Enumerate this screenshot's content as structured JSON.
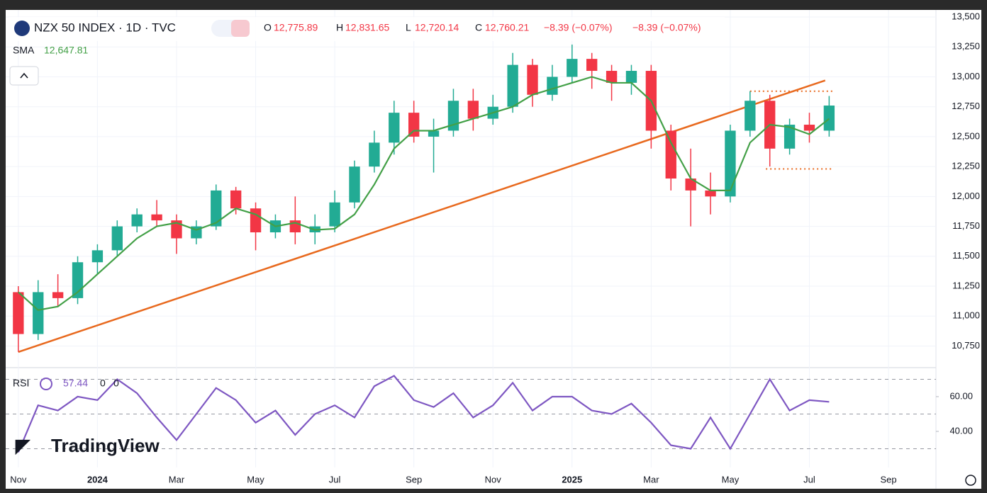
{
  "chart_data": {
    "type": "candlestick",
    "symbol": "NZX 50 INDEX · 1D · TVC",
    "ohlc": {
      "o_label": "O",
      "o": "12,775.89",
      "h_label": "H",
      "h": "12,831.65",
      "l_label": "L",
      "l": "12,720.14",
      "c_label": "C",
      "c": "12,760.21",
      "change": "−8.39 (−0.07%)",
      "change2": "−8.39 (−0.07%)"
    },
    "sma_label": "SMA",
    "sma_value": "12,647.81",
    "rsi_label": "RSI",
    "rsi_value": "57.44",
    "rsi_param1": "0",
    "rsi_param2": "0",
    "brand": "TradingView",
    "x": [
      0,
      0.5,
      1,
      1.5,
      2,
      2.5,
      3,
      3.5,
      4,
      4.5,
      5,
      5.5,
      6,
      6.5,
      7,
      7.5,
      8,
      8.5,
      9,
      9.5,
      10,
      10.5,
      11,
      11.5,
      12,
      12.5,
      13,
      13.5,
      14,
      14.5,
      15,
      15.5,
      16,
      16.5,
      17,
      17.5,
      18,
      18.5,
      19,
      19.5,
      20,
      20.5
    ],
    "open": [
      11200,
      10850,
      11200,
      11150,
      11450,
      11550,
      11750,
      11850,
      11800,
      11650,
      11750,
      12050,
      11900,
      11700,
      11800,
      11700,
      11750,
      11950,
      12250,
      12450,
      12700,
      12500,
      12550,
      12800,
      12650,
      12750,
      13100,
      12850,
      13000,
      13150,
      13050,
      12950,
      13050,
      12550,
      12150,
      12050,
      12000,
      12550,
      12800,
      12400,
      12600,
      12550
    ],
    "high": [
      11250,
      11300,
      11350,
      11500,
      11600,
      11800,
      11900,
      11970,
      11850,
      11800,
      12100,
      12080,
      11950,
      11850,
      12000,
      11850,
      12050,
      12300,
      12550,
      12800,
      12800,
      12650,
      12900,
      12900,
      12850,
      13200,
      13150,
      13100,
      13270,
      13200,
      13100,
      13100,
      13100,
      12600,
      12400,
      12200,
      12600,
      12880,
      12850,
      12650,
      12700,
      12840
    ],
    "low": [
      10700,
      10800,
      11080,
      11100,
      11350,
      11500,
      11700,
      11750,
      11520,
      11600,
      11720,
      11850,
      11550,
      11650,
      11600,
      11600,
      11700,
      11900,
      12200,
      12350,
      12450,
      12200,
      12500,
      12550,
      12600,
      12700,
      12750,
      12800,
      12950,
      12900,
      12800,
      12850,
      12400,
      12050,
      11750,
      11850,
      11950,
      12500,
      12250,
      12350,
      12450,
      12500
    ],
    "close": [
      10850,
      11200,
      11150,
      11450,
      11550,
      11750,
      11850,
      11800,
      11650,
      11750,
      12050,
      11900,
      11700,
      11800,
      11700,
      11750,
      11950,
      12250,
      12450,
      12700,
      12500,
      12550,
      12800,
      12650,
      12750,
      13100,
      12850,
      13000,
      13150,
      13050,
      12950,
      13050,
      12550,
      12150,
      12050,
      12000,
      12550,
      12800,
      12400,
      12600,
      12550,
      12760
    ],
    "sma": [
      11200,
      11050,
      11080,
      11200,
      11350,
      11500,
      11650,
      11750,
      11780,
      11720,
      11780,
      11900,
      11850,
      11750,
      11780,
      11720,
      11730,
      11850,
      12100,
      12400,
      12550,
      12550,
      12600,
      12650,
      12700,
      12750,
      12850,
      12900,
      12950,
      13000,
      12950,
      12950,
      12800,
      12450,
      12150,
      12050,
      12050,
      12450,
      12600,
      12580,
      12520,
      12650
    ],
    "rsi": [
      28,
      55,
      52,
      60,
      58,
      70,
      62,
      48,
      35,
      50,
      65,
      58,
      45,
      52,
      38,
      50,
      55,
      48,
      66,
      72,
      58,
      54,
      62,
      48,
      55,
      68,
      52,
      60,
      60,
      52,
      50,
      56,
      45,
      32,
      30,
      48,
      30,
      50,
      70,
      52,
      58,
      57
    ],
    "up_color": "#22ab94",
    "down_color": "#f23645",
    "sma_color": "#43a047",
    "rsi_color": "#7e57c2",
    "trend_color": "#e8691e",
    "trendline": {
      "x": [
        0,
        20.4
      ],
      "y": [
        10700,
        12970
      ]
    },
    "levels": [
      {
        "x": [
          18.5,
          20.6
        ],
        "y": 12880
      },
      {
        "x": [
          18.9,
          20.6
        ],
        "y": 12230
      }
    ],
    "rsi_levels": [
      70,
      50,
      30
    ],
    "xlim": [
      -0.32,
      23.2
    ],
    "xticks": [
      {
        "value": 0,
        "label": "Nov"
      },
      {
        "value": 2,
        "label": "2024"
      },
      {
        "value": 4,
        "label": "Mar"
      },
      {
        "value": 6,
        "label": "May"
      },
      {
        "value": 8,
        "label": "Jul"
      },
      {
        "value": 10,
        "label": "Sep"
      },
      {
        "value": 12,
        "label": "Nov"
      },
      {
        "value": 14,
        "label": "2025"
      },
      {
        "value": 16,
        "label": "Mar"
      },
      {
        "value": 18,
        "label": "May"
      },
      {
        "value": 20,
        "label": "Jul"
      },
      {
        "value": 22,
        "label": "Sep"
      }
    ],
    "ylim": [
      10575,
      13595
    ],
    "yticks": [
      {
        "value": 10750,
        "label": "10,750"
      },
      {
        "value": 11000,
        "label": "11,000"
      },
      {
        "value": 11250,
        "label": "11,250"
      },
      {
        "value": 11500,
        "label": "11,500"
      },
      {
        "value": 11750,
        "label": "11,750"
      },
      {
        "value": 12000,
        "label": "12,000"
      },
      {
        "value": 12250,
        "label": "12,250"
      },
      {
        "value": 12500,
        "label": "12,500"
      },
      {
        "value": 12750,
        "label": "12,750"
      },
      {
        "value": 13000,
        "label": "13,000"
      },
      {
        "value": 13250,
        "label": "13,250"
      },
      {
        "value": 13500,
        "label": "13,500"
      }
    ],
    "y2lim": [
      19.2,
      76.3
    ],
    "y2ticks": [
      {
        "value": 40,
        "label": "40.00"
      },
      {
        "value": 60,
        "label": "60.00"
      }
    ],
    "grid": true
  }
}
